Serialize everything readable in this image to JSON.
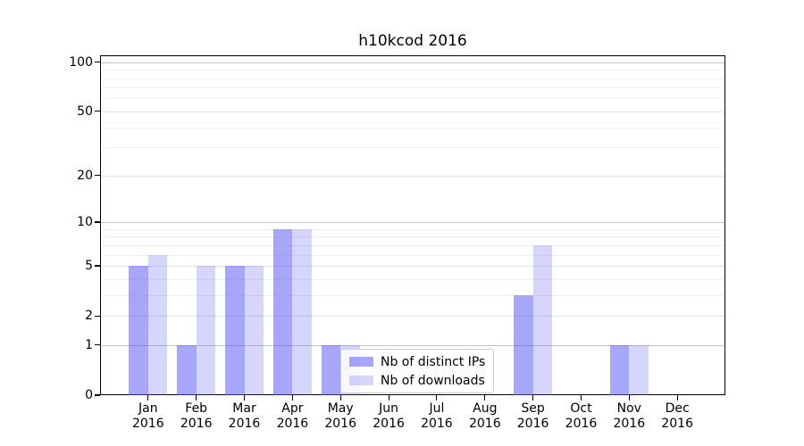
{
  "chart_data": {
    "type": "bar",
    "title": "h10kcod 2016",
    "xlabel": "",
    "ylabel": "",
    "categories": [
      "Jan 2016",
      "Feb 2016",
      "Mar 2016",
      "Apr 2016",
      "May 2016",
      "Jun 2016",
      "Jul 2016",
      "Aug 2016",
      "Sep 2016",
      "Oct 2016",
      "Nov 2016",
      "Dec 2016"
    ],
    "series": [
      {
        "name": "Nb of distinct IPs",
        "color": "rgba(85,85,245,0.52)",
        "values": [
          5,
          1,
          5,
          9,
          1,
          0,
          0,
          0,
          3,
          0,
          1,
          0
        ]
      },
      {
        "name": "Nb of downloads",
        "color": "rgba(85,85,245,0.24)",
        "values": [
          6,
          5,
          5,
          9,
          1,
          0,
          0,
          0,
          7,
          0,
          1,
          0
        ]
      }
    ],
    "yscale": "log(1+y)",
    "ylim": [
      0,
      110
    ],
    "yticks_labeled": [
      0,
      1,
      2,
      5,
      10,
      20,
      50,
      100
    ],
    "grid": true,
    "gridlines_major": [
      1,
      10,
      100
    ],
    "gridlines_mid": [
      2,
      5,
      20,
      50
    ],
    "gridlines_minor": [
      3,
      4,
      6,
      7,
      8,
      9,
      30,
      40,
      60,
      70,
      80,
      90
    ],
    "legend_position": "lower center"
  },
  "colors": {
    "background": "#ffffff",
    "axis": "#000000",
    "grid_major": "#c4c4c4",
    "grid_mid": "#e2e2e2",
    "grid_minor": "#f0f0f0",
    "bar_distinct_ips_rendered": "#a9a9fa",
    "bar_downloads_rendered": "#d7d7fa",
    "legend_border": "#cccccc"
  }
}
